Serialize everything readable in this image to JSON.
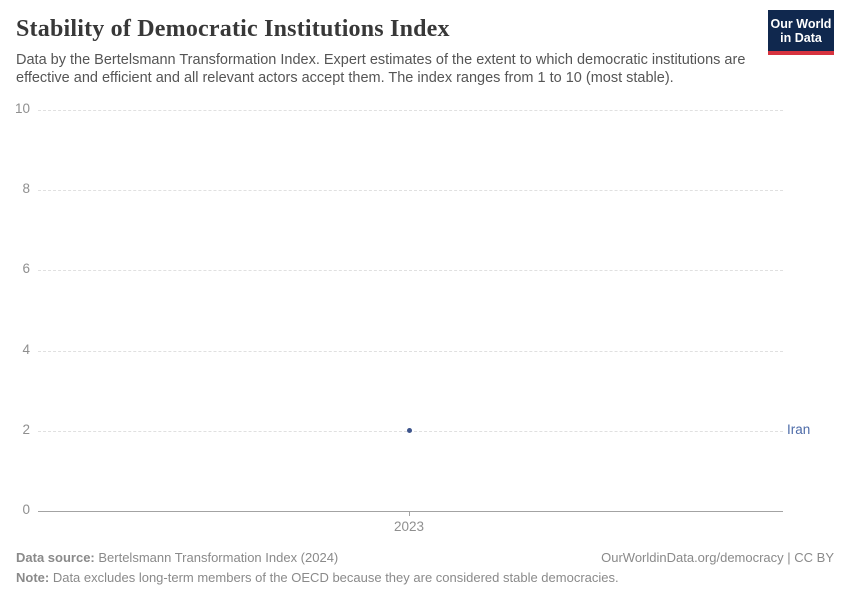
{
  "header": {
    "title": "Stability of Democratic Institutions Index",
    "subtitle": "Data by the Bertelsmann Transformation Index. Expert estimates of the extent to which democratic institutions are effective and efficient and all relevant actors accept them. The index ranges from 1 to 10 (most stable).",
    "logo": {
      "line1": "Our World",
      "line2": "in Data"
    }
  },
  "chart_data": {
    "type": "scatter",
    "x": [
      2023
    ],
    "series": [
      {
        "name": "Iran",
        "values": [
          2
        ],
        "point_color": "#3d548c",
        "label_color": "#4d6ba8"
      }
    ],
    "title": "Stability of Democratic Institutions Index",
    "xlabel": "",
    "ylabel": "",
    "ylim": [
      0,
      10
    ],
    "yticks": [
      0,
      2,
      4,
      6,
      8,
      10
    ],
    "xtick_labels": [
      "2023"
    ],
    "grid": "horizontal-dashed",
    "legend_position": "right-of-point"
  },
  "footer": {
    "datasource_label": "Data source:",
    "datasource_value": " Bertelsmann Transformation Index (2024)",
    "rights": "OurWorldinData.org/democracy | CC BY",
    "note_label": "Note:",
    "note_value": " Data excludes long-term members of the OECD because they are considered stable democracies."
  }
}
